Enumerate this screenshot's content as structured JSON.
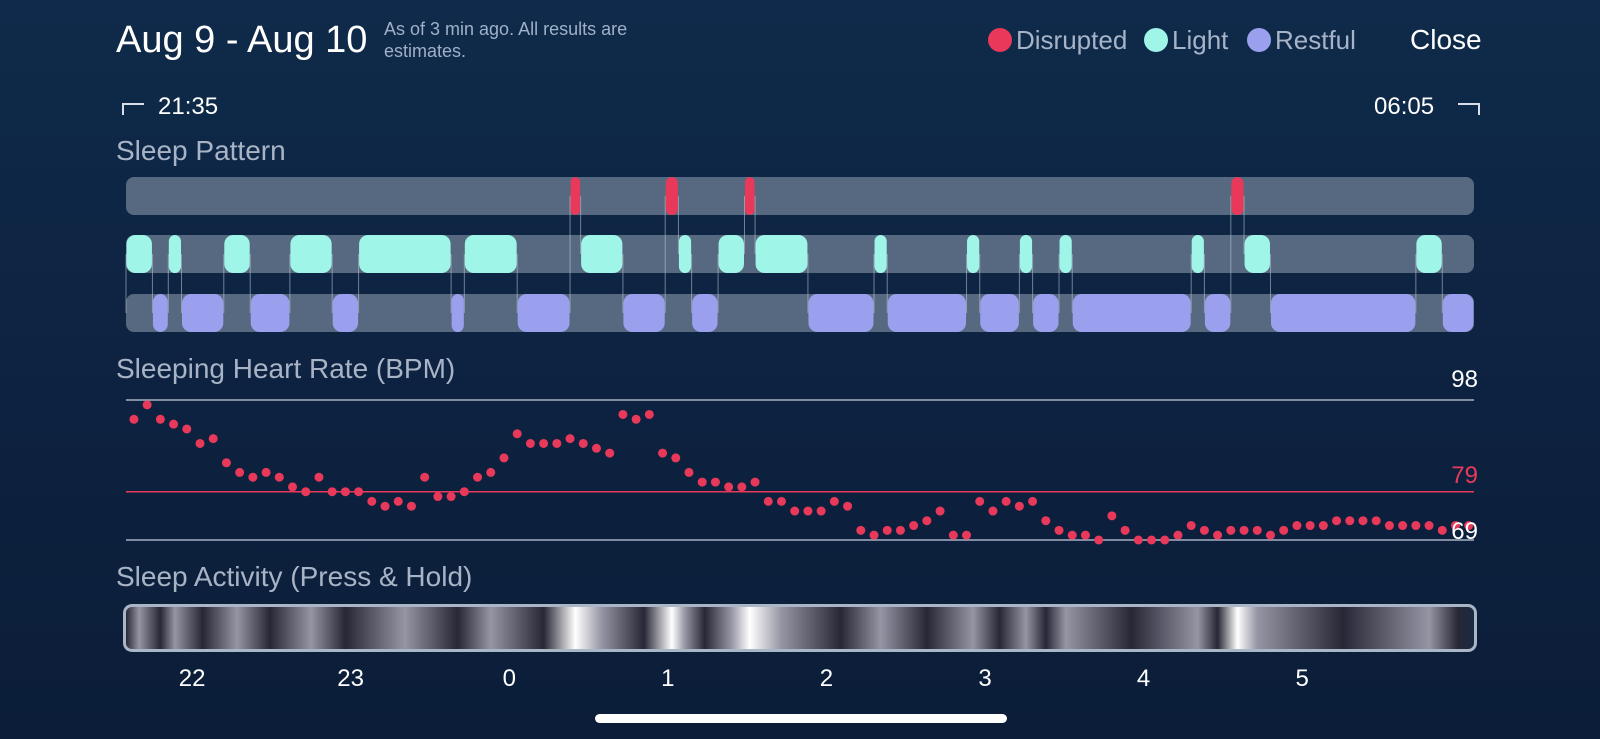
{
  "header": {
    "date_range": "Aug 9 - Aug 10",
    "estimate_note": "As of 3 min ago. All results are estimates.",
    "close_label": "Close"
  },
  "legend": [
    {
      "label": "Disrupted",
      "color": "#e8395a"
    },
    {
      "label": "Light",
      "color": "#9ef5e8"
    },
    {
      "label": "Restful",
      "color": "#9aa0ee"
    }
  ],
  "time_range": {
    "start": "21:35",
    "end": "06:05"
  },
  "sleep_pattern": {
    "title": "Sleep Pattern",
    "colors": {
      "disrupted": "#e8395a",
      "light": "#9ef5e8",
      "restful": "#9aa0ee",
      "track": "#576980"
    }
  },
  "heart_rate": {
    "title": "Sleeping Heart Rate (BPM)",
    "max_label": "98",
    "avg_label": "79",
    "min_label": "69",
    "max": 98,
    "avg": 79,
    "min": 69,
    "line_color": "#e8395a"
  },
  "sleep_activity": {
    "title": "Sleep Activity (Press & Hold)",
    "hour_labels": [
      "22",
      "23",
      "0",
      "1",
      "2",
      "3",
      "4",
      "5"
    ]
  },
  "chart_data": [
    {
      "type": "timeline",
      "title": "Sleep Pattern",
      "start": "21:35",
      "end": "06:05",
      "stages": [
        "Disrupted",
        "Light",
        "Restful"
      ],
      "segments": [
        {
          "stage": "Restful",
          "start": "21:35",
          "end": "21:35"
        },
        {
          "stage": "Light",
          "start": "21:35",
          "end": "21:45"
        },
        {
          "stage": "Restful",
          "start": "21:45",
          "end": "21:51"
        },
        {
          "stage": "Light",
          "start": "21:51",
          "end": "21:56"
        },
        {
          "stage": "Restful",
          "start": "21:56",
          "end": "22:12"
        },
        {
          "stage": "Light",
          "start": "22:12",
          "end": "22:22"
        },
        {
          "stage": "Restful",
          "start": "22:22",
          "end": "22:37"
        },
        {
          "stage": "Light",
          "start": "22:37",
          "end": "22:53"
        },
        {
          "stage": "Restful",
          "start": "22:53",
          "end": "23:03"
        },
        {
          "stage": "Light",
          "start": "23:03",
          "end": "23:38"
        },
        {
          "stage": "Restful",
          "start": "23:38",
          "end": "23:43"
        },
        {
          "stage": "Light",
          "start": "23:43",
          "end": "00:03"
        },
        {
          "stage": "Restful",
          "start": "00:03",
          "end": "00:23"
        },
        {
          "stage": "Disrupted",
          "start": "00:23",
          "end": "00:27"
        },
        {
          "stage": "Light",
          "start": "00:27",
          "end": "00:43"
        },
        {
          "stage": "Restful",
          "start": "00:43",
          "end": "00:59"
        },
        {
          "stage": "Disrupted",
          "start": "00:59",
          "end": "01:04"
        },
        {
          "stage": "Light",
          "start": "01:04",
          "end": "01:09"
        },
        {
          "stage": "Restful",
          "start": "01:09",
          "end": "01:19"
        },
        {
          "stage": "Light",
          "start": "01:19",
          "end": "01:29"
        },
        {
          "stage": "Disrupted",
          "start": "01:29",
          "end": "01:33"
        },
        {
          "stage": "Light",
          "start": "01:33",
          "end": "01:53"
        },
        {
          "stage": "Restful",
          "start": "01:53",
          "end": "02:18"
        },
        {
          "stage": "Light",
          "start": "02:18",
          "end": "02:23"
        },
        {
          "stage": "Restful",
          "start": "02:23",
          "end": "02:53"
        },
        {
          "stage": "Light",
          "start": "02:53",
          "end": "02:58"
        },
        {
          "stage": "Restful",
          "start": "02:58",
          "end": "03:13"
        },
        {
          "stage": "Light",
          "start": "03:13",
          "end": "03:18"
        },
        {
          "stage": "Restful",
          "start": "03:18",
          "end": "03:28"
        },
        {
          "stage": "Light",
          "start": "03:28",
          "end": "03:33"
        },
        {
          "stage": "Restful",
          "start": "03:33",
          "end": "04:18"
        },
        {
          "stage": "Light",
          "start": "04:18",
          "end": "04:23"
        },
        {
          "stage": "Restful",
          "start": "04:23",
          "end": "04:33"
        },
        {
          "stage": "Disrupted",
          "start": "04:33",
          "end": "04:38"
        },
        {
          "stage": "Light",
          "start": "04:38",
          "end": "04:48"
        },
        {
          "stage": "Restful",
          "start": "04:48",
          "end": "05:43"
        },
        {
          "stage": "Light",
          "start": "05:43",
          "end": "05:53"
        },
        {
          "stage": "Restful",
          "start": "05:53",
          "end": "06:05"
        }
      ]
    },
    {
      "type": "scatter",
      "title": "Sleeping Heart Rate (BPM)",
      "xlabel": "",
      "ylabel": "",
      "ylim": [
        69,
        98
      ],
      "reference_lines": [
        98,
        79,
        69
      ],
      "series": [
        {
          "x": [
            "21:38",
            "21:43",
            "21:48",
            "21:53",
            "21:58",
            "22:03",
            "22:08",
            "22:13",
            "22:18",
            "22:23",
            "22:28",
            "22:33",
            "22:38",
            "22:43",
            "22:48",
            "22:53",
            "22:58",
            "23:03",
            "23:08",
            "23:13",
            "23:18",
            "23:23",
            "23:28",
            "23:33",
            "23:38",
            "23:43",
            "23:48",
            "23:53",
            "23:58",
            "00:03",
            "00:08",
            "00:13",
            "00:18",
            "00:23",
            "00:28",
            "00:33",
            "00:38",
            "00:43",
            "00:48",
            "00:53",
            "00:58",
            "01:03",
            "01:08",
            "01:13",
            "01:18",
            "01:23",
            "01:28",
            "01:33",
            "01:38",
            "01:43",
            "01:48",
            "01:53",
            "01:58",
            "02:03",
            "02:08",
            "02:13",
            "02:18",
            "02:23",
            "02:28",
            "02:33",
            "02:38",
            "02:43",
            "02:48",
            "02:53",
            "02:58",
            "03:03",
            "03:08",
            "03:13",
            "03:18",
            "03:23",
            "03:28",
            "03:33",
            "03:38",
            "03:43",
            "03:48",
            "03:53",
            "03:58",
            "04:03",
            "04:08",
            "04:13",
            "04:18",
            "04:23",
            "04:28",
            "04:33",
            "04:38",
            "04:43",
            "04:48",
            "04:53",
            "04:58",
            "05:03",
            "05:08",
            "05:13",
            "05:18",
            "05:23",
            "05:28",
            "05:33",
            "05:38",
            "05:43",
            "05:48",
            "05:53",
            "05:58",
            "06:03"
          ],
          "y": [
            94,
            97,
            94,
            93,
            92,
            89,
            90,
            85,
            83,
            82,
            83,
            82,
            80,
            79,
            82,
            79,
            79,
            79,
            77,
            76,
            77,
            76,
            82,
            78,
            78,
            79,
            82,
            83,
            86,
            91,
            89,
            89,
            89,
            90,
            89,
            88,
            87,
            95,
            94,
            95,
            87,
            86,
            83,
            81,
            81,
            80,
            80,
            81,
            77,
            77,
            75,
            75,
            75,
            77,
            76,
            71,
            70,
            71,
            71,
            72,
            73,
            75,
            70,
            70,
            77,
            75,
            77,
            76,
            77,
            73,
            71,
            70,
            70,
            69,
            74,
            71,
            69,
            69,
            69,
            70,
            72,
            71,
            70,
            71,
            71,
            71,
            70,
            71,
            72,
            72,
            72,
            73,
            73,
            73,
            73,
            72,
            72,
            72,
            72,
            71,
            72,
            72
          ]
        }
      ]
    },
    {
      "type": "heatmap",
      "title": "Sleep Activity (Press & Hold)",
      "x_tick_labels": [
        "22",
        "23",
        "0",
        "1",
        "2",
        "3",
        "4",
        "5"
      ]
    }
  ]
}
